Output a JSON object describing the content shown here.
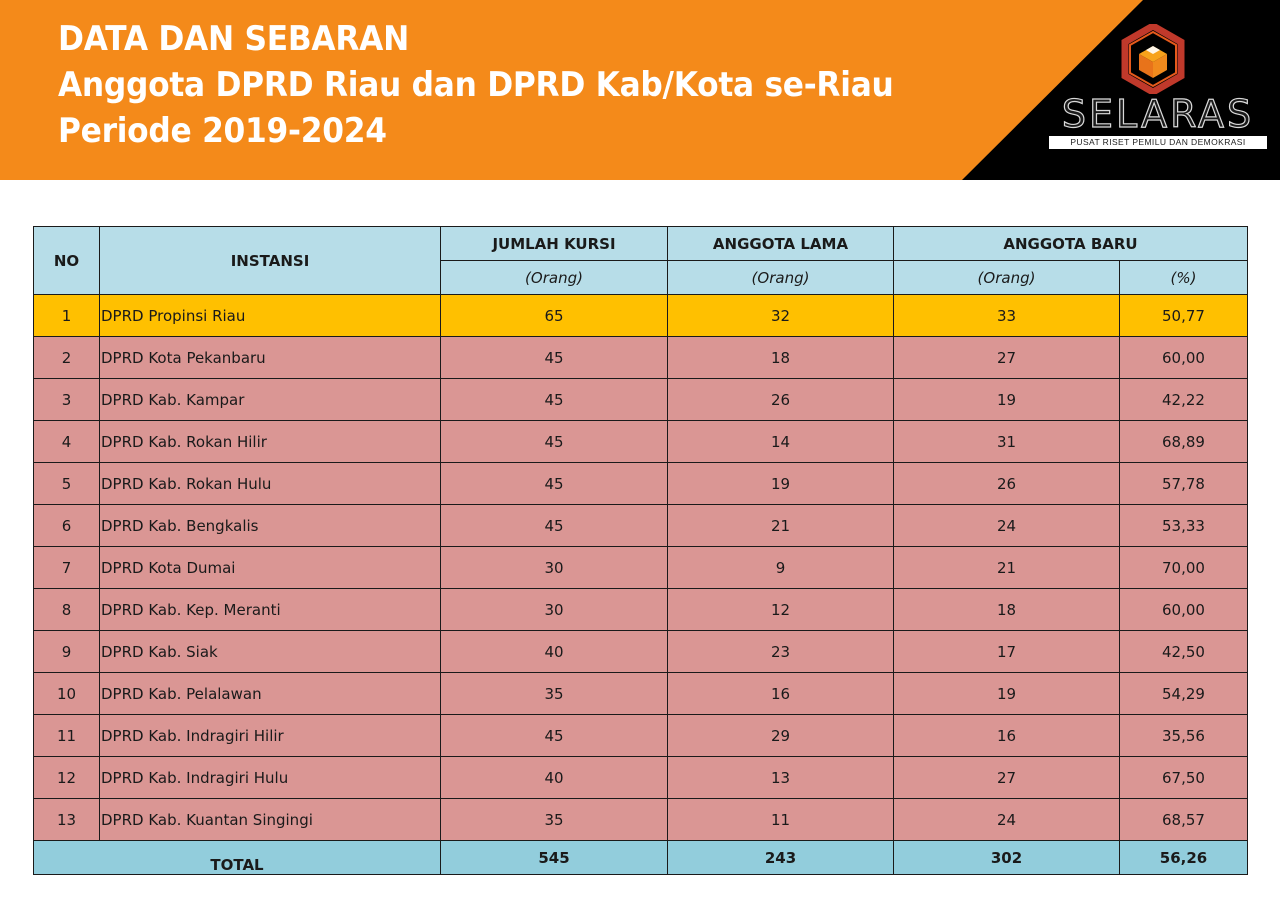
{
  "header": {
    "line1": "DATA DAN SEBARAN",
    "line2": "Anggota DPRD Riau dan DPRD Kab/Kota se-Riau",
    "line3": "Periode 2019-2024",
    "colors": {
      "orange": "#f48a1a",
      "black": "#000000"
    }
  },
  "logo": {
    "name": "SELARAS",
    "tagline": "PUSAT RISET PEMILU DAN DEMOKRASI",
    "icon": "hexagon-cube-icon"
  },
  "table": {
    "headers": {
      "no": "NO",
      "instansi": "INSTANSI",
      "jumlah_kursi": "JUMLAH KURSI",
      "anggota_lama": "ANGGOTA LAMA",
      "anggota_baru": "ANGGOTA BARU",
      "unit_orang": "(Orang)",
      "unit_persen": "(%)"
    },
    "rows": [
      {
        "no": "1",
        "instansi": "DPRD Propinsi Riau",
        "kursi": "65",
        "lama": "32",
        "baru": "33",
        "persen": "50,77"
      },
      {
        "no": "2",
        "instansi": "DPRD Kota Pekanbaru",
        "kursi": "45",
        "lama": "18",
        "baru": "27",
        "persen": "60,00"
      },
      {
        "no": "3",
        "instansi": "DPRD Kab. Kampar",
        "kursi": "45",
        "lama": "26",
        "baru": "19",
        "persen": "42,22"
      },
      {
        "no": "4",
        "instansi": "DPRD Kab. Rokan Hilir",
        "kursi": "45",
        "lama": "14",
        "baru": "31",
        "persen": "68,89"
      },
      {
        "no": "5",
        "instansi": "DPRD Kab. Rokan Hulu",
        "kursi": "45",
        "lama": "19",
        "baru": "26",
        "persen": "57,78"
      },
      {
        "no": "6",
        "instansi": "DPRD Kab. Bengkalis",
        "kursi": "45",
        "lama": "21",
        "baru": "24",
        "persen": "53,33"
      },
      {
        "no": "7",
        "instansi": "DPRD Kota Dumai",
        "kursi": "30",
        "lama": "9",
        "baru": "21",
        "persen": "70,00"
      },
      {
        "no": "8",
        "instansi": "DPRD Kab. Kep. Meranti",
        "kursi": "30",
        "lama": "12",
        "baru": "18",
        "persen": "60,00"
      },
      {
        "no": "9",
        "instansi": "DPRD Kab. Siak",
        "kursi": "40",
        "lama": "23",
        "baru": "17",
        "persen": "42,50"
      },
      {
        "no": "10",
        "instansi": "DPRD Kab. Pelalawan",
        "kursi": "35",
        "lama": "16",
        "baru": "19",
        "persen": "54,29"
      },
      {
        "no": "11",
        "instansi": "DPRD Kab. Indragiri Hilir",
        "kursi": "45",
        "lama": "29",
        "baru": "16",
        "persen": "35,56"
      },
      {
        "no": "12",
        "instansi": "DPRD Kab. Indragiri Hulu",
        "kursi": "40",
        "lama": "13",
        "baru": "27",
        "persen": "67,50"
      },
      {
        "no": "13",
        "instansi": "DPRD Kab. Kuantan Singingi",
        "kursi": "35",
        "lama": "11",
        "baru": "24",
        "persen": "68,57"
      }
    ],
    "total": {
      "label": "TOTAL",
      "kursi": "545",
      "lama": "243",
      "baru": "302",
      "persen": "56,26"
    },
    "colors": {
      "header": "#b7dde8",
      "highlight": "#ffc000",
      "row": "#da9694",
      "total": "#92cddc"
    }
  }
}
